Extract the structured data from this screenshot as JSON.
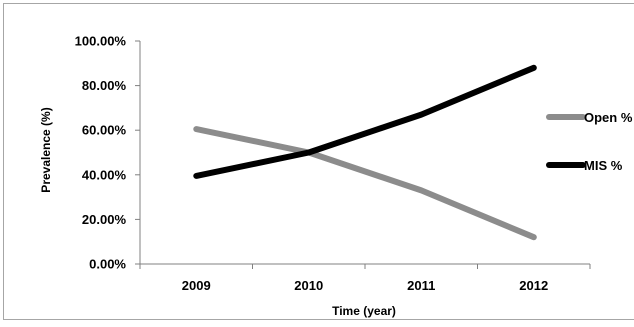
{
  "chart_data": {
    "type": "line",
    "title": "",
    "xlabel": "Time (year)",
    "ylabel": "Prevalence (%)",
    "categories": [
      "2009",
      "2010",
      "2011",
      "2012"
    ],
    "ylim": [
      0,
      100
    ],
    "yticks": [
      "0.00%",
      "20.00%",
      "40.00%",
      "60.00%",
      "80.00%",
      "100.00%"
    ],
    "grid": false,
    "legend_position": "right",
    "series": [
      {
        "name": "Open %",
        "values": [
          60.5,
          50.0,
          33.0,
          12.0
        ],
        "color": "#8c8c8c"
      },
      {
        "name": "MIS %",
        "values": [
          39.5,
          50.0,
          67.0,
          88.0
        ],
        "color": "#000000"
      }
    ]
  }
}
